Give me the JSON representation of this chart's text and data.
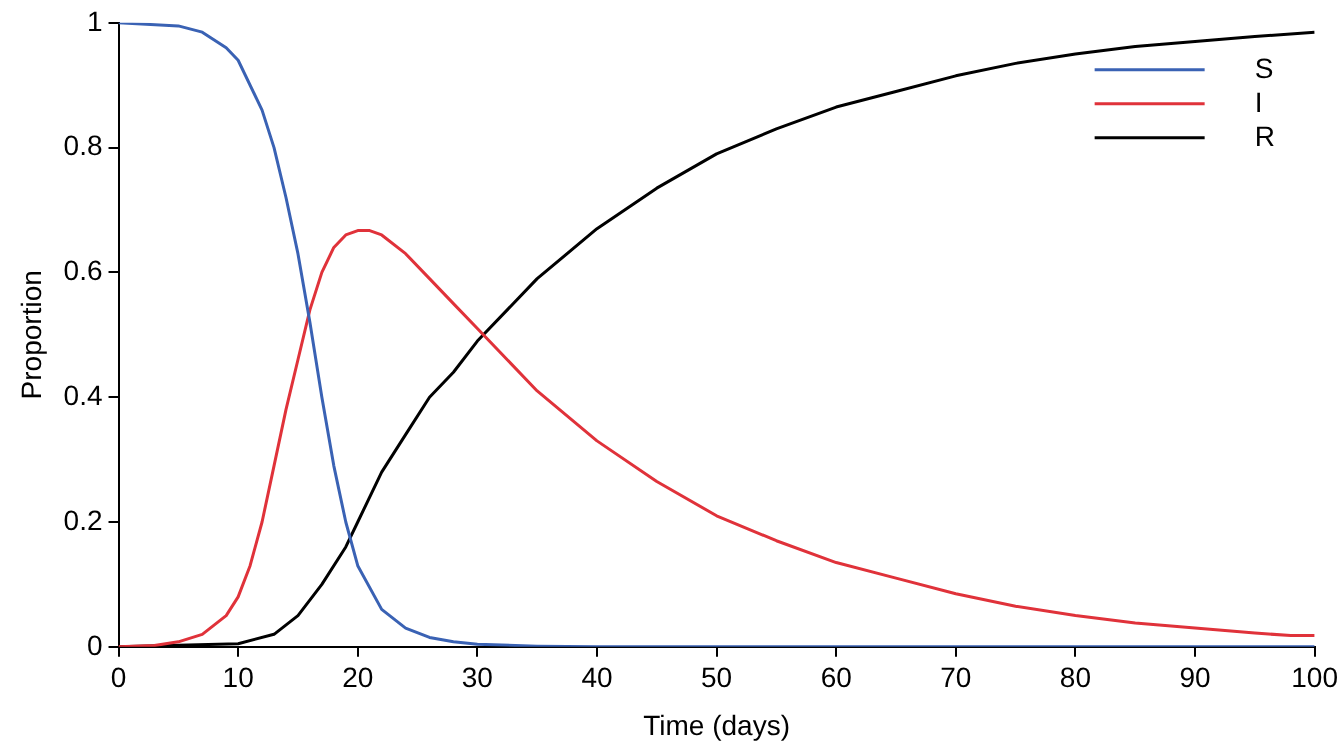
{
  "chart_data": {
    "type": "line",
    "xlabel": "Time (days)",
    "ylabel": "Proportion",
    "xlim": [
      0,
      100
    ],
    "ylim": [
      0,
      1
    ],
    "xticks": [
      0,
      10,
      20,
      30,
      40,
      50,
      60,
      70,
      80,
      90,
      100
    ],
    "yticks": [
      0,
      0.2,
      0.4,
      0.6,
      0.8,
      1
    ],
    "grid": false,
    "legend": "top right",
    "marker": "none",
    "line_style": "solid",
    "series": [
      {
        "name": "S",
        "color": "#3a62b4",
        "x": [
          0,
          5,
          7,
          9,
          10,
          12,
          13,
          14,
          15,
          16,
          17,
          18,
          19,
          20,
          22,
          24,
          26,
          28,
          30,
          35,
          40,
          60,
          80,
          100
        ],
        "values": [
          1,
          0.995,
          0.985,
          0.96,
          0.94,
          0.86,
          0.8,
          0.72,
          0.63,
          0.52,
          0.4,
          0.29,
          0.2,
          0.13,
          0.06,
          0.03,
          0.015,
          0.008,
          0.004,
          0.001,
          0,
          0,
          0,
          0
        ]
      },
      {
        "name": "I",
        "color": "#e0323a",
        "x": [
          0,
          3,
          5,
          7,
          9,
          10,
          11,
          12,
          13,
          14,
          15,
          16,
          17,
          18,
          19,
          20,
          21,
          22,
          24,
          26,
          28,
          30,
          32,
          35,
          40,
          45,
          50,
          55,
          60,
          65,
          70,
          75,
          80,
          85,
          90,
          95,
          98,
          100
        ],
        "values": [
          0,
          0.002,
          0.008,
          0.02,
          0.05,
          0.08,
          0.13,
          0.2,
          0.29,
          0.38,
          0.46,
          0.54,
          0.6,
          0.64,
          0.66,
          0.667,
          0.667,
          0.66,
          0.63,
          0.59,
          0.55,
          0.51,
          0.47,
          0.41,
          0.33,
          0.265,
          0.21,
          0.17,
          0.135,
          0.11,
          0.085,
          0.065,
          0.05,
          0.038,
          0.03,
          0.022,
          0.018,
          0.018
        ]
      },
      {
        "name": "R",
        "color": "#000000",
        "x": [
          0,
          10,
          13,
          15,
          17,
          19,
          20,
          22,
          24,
          26,
          28,
          30,
          35,
          40,
          45,
          50,
          55,
          60,
          65,
          70,
          75,
          80,
          85,
          90,
          95,
          100
        ],
        "values": [
          0,
          0.005,
          0.02,
          0.05,
          0.1,
          0.16,
          0.2,
          0.28,
          0.34,
          0.4,
          0.44,
          0.49,
          0.59,
          0.67,
          0.735,
          0.79,
          0.83,
          0.865,
          0.89,
          0.915,
          0.935,
          0.95,
          0.962,
          0.97,
          0.978,
          0.985
        ]
      }
    ]
  }
}
